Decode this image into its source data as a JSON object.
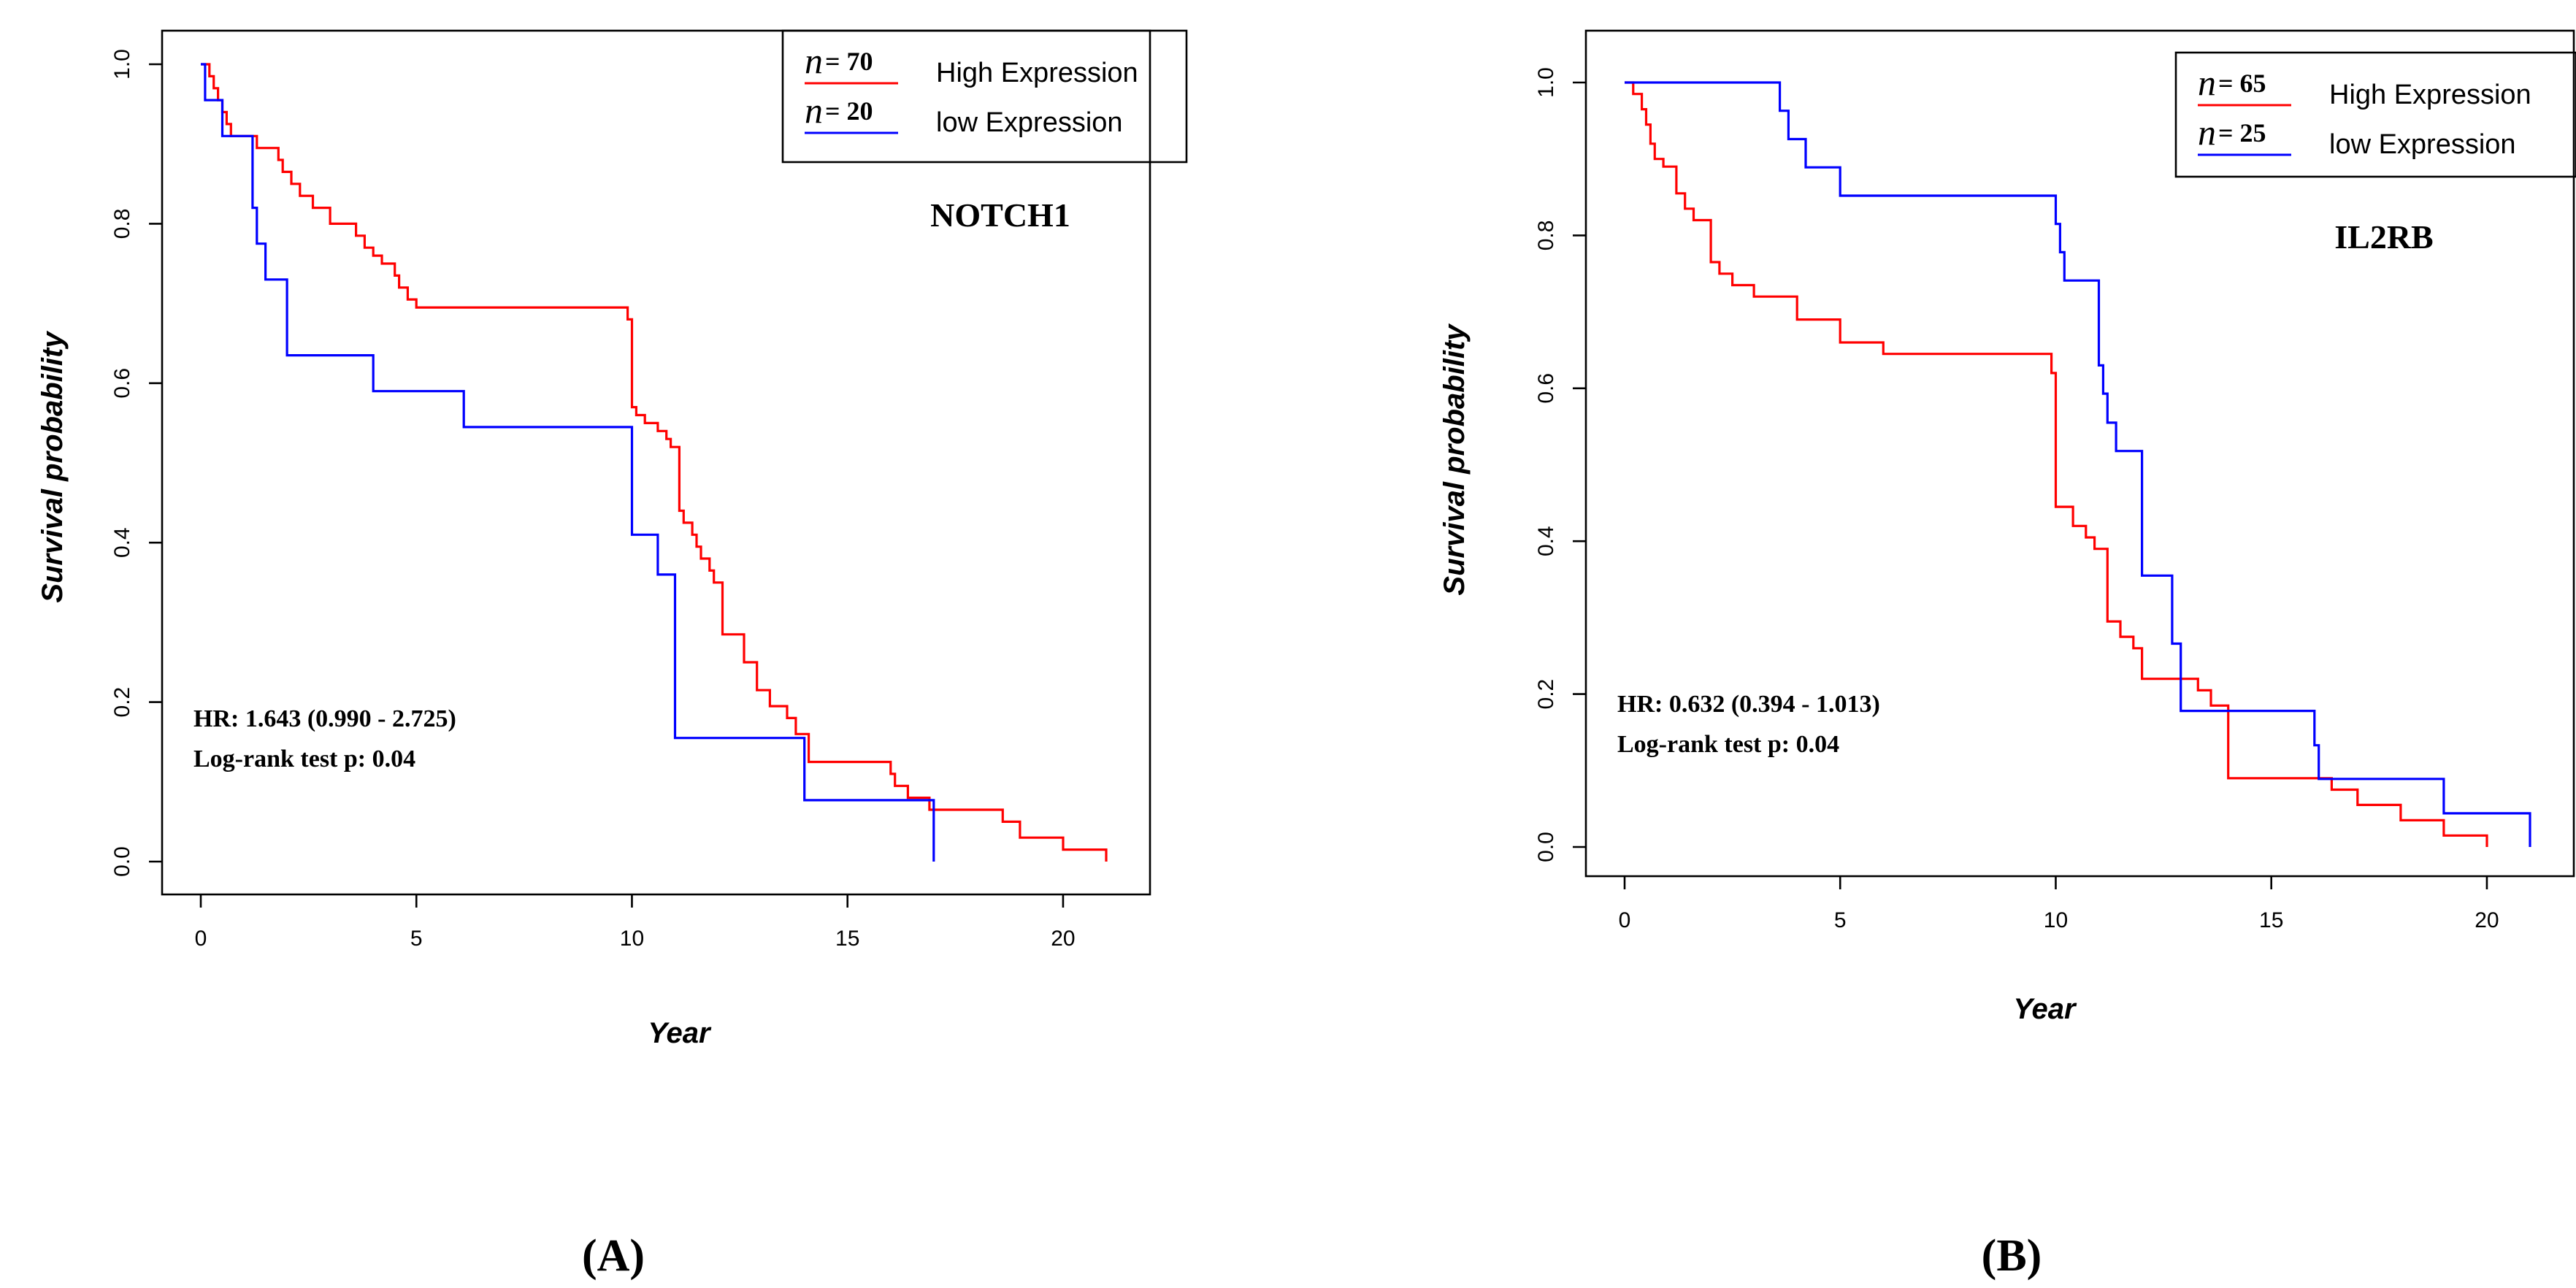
{
  "chart_data": [
    {
      "type": "line",
      "panel_label": "A",
      "gene": "NOTCH1",
      "xlabel": "Year",
      "ylabel": "Survival probability",
      "xlim": [
        0,
        21
      ],
      "ylim": [
        0,
        1
      ],
      "xticks": [
        "0",
        "5",
        "10",
        "15",
        "20"
      ],
      "yticks": [
        "0.0",
        "0.2",
        "0.4",
        "0.6",
        "0.8",
        "1.0"
      ],
      "legend": [
        {
          "n_prefix": "n",
          "n_value": "= 70",
          "label": "High Expression",
          "color": "#ff0000"
        },
        {
          "n_prefix": "n",
          "n_value": "= 20",
          "label": "low Expression",
          "color": "#0000ff"
        }
      ],
      "legend_position": "top-right",
      "hr_text": "HR: 1.643 (0.990 - 2.725)",
      "logrank_text": "Log-rank test p: 0.04",
      "series": [
        {
          "name": "High Expression",
          "color": "#ff0000",
          "x": [
            0,
            0.2,
            0.3,
            0.4,
            0.5,
            0.6,
            0.7,
            1.3,
            1.8,
            1.9,
            2.1,
            2.3,
            2.6,
            3.0,
            3.6,
            3.8,
            4.0,
            4.2,
            4.5,
            4.6,
            4.8,
            5.0,
            9.9,
            10.0,
            10.1,
            10.3,
            10.6,
            10.8,
            10.9,
            11.1,
            11.2,
            11.4,
            11.5,
            11.6,
            11.8,
            11.9,
            12.1,
            12.6,
            12.9,
            13.2,
            13.6,
            13.8,
            14.1,
            16.0,
            16.1,
            16.4,
            16.9,
            17.5,
            18.6,
            19.0,
            20.0,
            21.0
          ],
          "y": [
            1.0,
            0.985,
            0.97,
            0.955,
            0.94,
            0.925,
            0.91,
            0.895,
            0.88,
            0.865,
            0.85,
            0.835,
            0.82,
            0.8,
            0.785,
            0.77,
            0.76,
            0.75,
            0.735,
            0.72,
            0.705,
            0.695,
            0.68,
            0.57,
            0.56,
            0.55,
            0.54,
            0.53,
            0.52,
            0.44,
            0.425,
            0.41,
            0.395,
            0.38,
            0.365,
            0.35,
            0.285,
            0.25,
            0.215,
            0.195,
            0.18,
            0.16,
            0.125,
            0.11,
            0.095,
            0.08,
            0.065,
            0.065,
            0.05,
            0.03,
            0.015,
            0.0
          ]
        },
        {
          "name": "low Expression",
          "color": "#0000ff",
          "x": [
            0,
            0.1,
            0.5,
            1.2,
            1.3,
            1.5,
            2.0,
            4.0,
            6.1,
            10.0,
            10.6,
            11.0,
            14.0,
            17.0
          ],
          "y": [
            1.0,
            0.955,
            0.91,
            0.82,
            0.775,
            0.73,
            0.635,
            0.59,
            0.545,
            0.41,
            0.36,
            0.155,
            0.077,
            0.0
          ]
        }
      ]
    },
    {
      "type": "line",
      "panel_label": "B",
      "gene": "IL2RB",
      "xlabel": "Year",
      "ylabel": "Survival probability",
      "xlim": [
        0,
        21
      ],
      "ylim": [
        0,
        1
      ],
      "xticks": [
        "0",
        "5",
        "10",
        "15",
        "20"
      ],
      "yticks": [
        "0.0",
        "0.2",
        "0.4",
        "0.6",
        "0.8",
        "1.0"
      ],
      "legend": [
        {
          "n_prefix": "n",
          "n_value": "= 65",
          "label": "High Expression",
          "color": "#ff0000"
        },
        {
          "n_prefix": "n",
          "n_value": "= 25",
          "label": "low Expression",
          "color": "#0000ff"
        }
      ],
      "legend_position": "top-right",
      "hr_text": "HR: 0.632 (0.394 - 1.013)",
      "logrank_text": "Log-rank test p: 0.04",
      "series": [
        {
          "name": "High Expression",
          "color": "#ff0000",
          "x": [
            0,
            0.2,
            0.4,
            0.5,
            0.6,
            0.7,
            0.9,
            1.2,
            1.4,
            1.6,
            2.0,
            2.2,
            2.5,
            3.0,
            4.0,
            5.0,
            6.0,
            9.8,
            9.9,
            10.0,
            10.4,
            10.7,
            10.9,
            11.2,
            11.5,
            11.8,
            12.0,
            12.5,
            13.3,
            13.6,
            14.0,
            15.0,
            16.0,
            16.4,
            17.0,
            18.0,
            19.0,
            20.0
          ],
          "y": [
            1.0,
            0.985,
            0.965,
            0.945,
            0.92,
            0.9,
            0.89,
            0.855,
            0.835,
            0.82,
            0.765,
            0.75,
            0.735,
            0.72,
            0.69,
            0.66,
            0.645,
            0.645,
            0.62,
            0.445,
            0.42,
            0.405,
            0.39,
            0.295,
            0.275,
            0.26,
            0.22,
            0.22,
            0.205,
            0.185,
            0.09,
            0.09,
            0.09,
            0.075,
            0.055,
            0.035,
            0.015,
            0.0
          ]
        },
        {
          "name": "low Expression",
          "color": "#0000ff",
          "x": [
            0,
            3.6,
            3.8,
            4.2,
            5.0,
            7.0,
            10.0,
            10.1,
            10.2,
            10.4,
            11.0,
            11.1,
            11.2,
            11.4,
            11.6,
            12.0,
            12.7,
            12.9,
            13.0,
            16.0,
            16.1,
            19.0,
            21.0
          ],
          "y": [
            1.0,
            0.963,
            0.926,
            0.889,
            0.852,
            0.852,
            0.815,
            0.778,
            0.741,
            0.741,
            0.63,
            0.593,
            0.555,
            0.518,
            0.518,
            0.355,
            0.266,
            0.178,
            0.178,
            0.133,
            0.089,
            0.044,
            0.0
          ]
        }
      ]
    }
  ]
}
